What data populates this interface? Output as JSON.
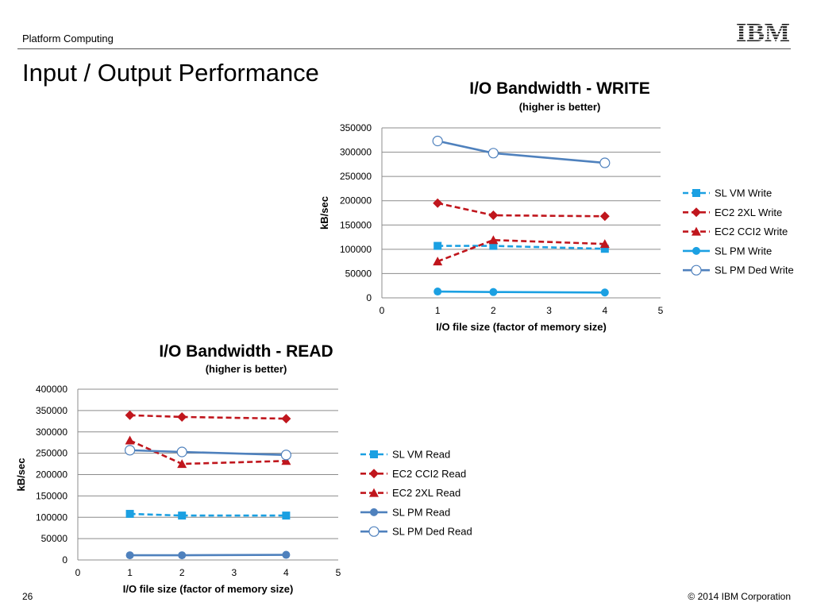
{
  "header": {
    "section": "Platform Computing",
    "logo_text": "IBM"
  },
  "page": {
    "title": "Input / Output Performance",
    "number": "26",
    "copyright": "© 2014 IBM Corporation"
  },
  "colors": {
    "sl_vm": "#1ba0e2",
    "ec2": "#c0161d",
    "sl_pm": "#1ba0e2",
    "sl_pm_ded": "#4f81bd"
  },
  "chart_data": [
    {
      "type": "line",
      "title": "I/O Bandwidth - WRITE",
      "subtitle": "(higher is better)",
      "xlabel": "I/O  file size (factor of memory size)",
      "ylabel": "kB/sec",
      "xlim": [
        0,
        5
      ],
      "ylim": [
        0,
        350000
      ],
      "xticks": [
        "0",
        "1",
        "2",
        "3",
        "4",
        "5"
      ],
      "yticks": [
        "0",
        "50000",
        "100000",
        "150000",
        "200000",
        "250000",
        "300000",
        "350000"
      ],
      "grid": true,
      "legend": "right",
      "x": [
        1,
        2,
        4
      ],
      "series": [
        {
          "name": "SL VM Write",
          "values": [
            107000,
            107000,
            101000
          ],
          "color": "#1ba0e2",
          "dash": true,
          "marker": "square"
        },
        {
          "name": "EC2 2XL Write",
          "values": [
            195000,
            170000,
            168000
          ],
          "color": "#c0161d",
          "dash": true,
          "marker": "diamond"
        },
        {
          "name": "EC2 CCI2 Write",
          "values": [
            75000,
            119000,
            111000
          ],
          "color": "#c0161d",
          "dash": true,
          "marker": "triangle"
        },
        {
          "name": "SL PM Write",
          "values": [
            13000,
            12000,
            11000
          ],
          "color": "#1ba0e2",
          "dash": false,
          "marker": "circle"
        },
        {
          "name": "SL PM Ded Write",
          "values": [
            323000,
            298000,
            278000
          ],
          "color": "#4f81bd",
          "dash": false,
          "marker": "open-circle"
        }
      ]
    },
    {
      "type": "line",
      "title": "I/O Bandwidth - READ",
      "subtitle": "(higher is better)",
      "xlabel": "I/O file size (factor of memory size)",
      "ylabel": "kB/sec",
      "xlim": [
        0,
        5
      ],
      "ylim": [
        0,
        400000
      ],
      "xticks": [
        "0",
        "1",
        "2",
        "3",
        "4",
        "5"
      ],
      "yticks": [
        "0",
        "50000",
        "100000",
        "150000",
        "200000",
        "250000",
        "300000",
        "350000",
        "400000"
      ],
      "grid": true,
      "legend": "right",
      "x": [
        1,
        2,
        4
      ],
      "series": [
        {
          "name": "SL VM Read",
          "values": [
            108000,
            104000,
            104000
          ],
          "color": "#1ba0e2",
          "dash": true,
          "marker": "square"
        },
        {
          "name": "EC2 CCI2 Read",
          "values": [
            339000,
            335000,
            331000
          ],
          "color": "#c0161d",
          "dash": true,
          "marker": "diamond"
        },
        {
          "name": "EC2 2XL Read",
          "values": [
            280000,
            225000,
            232000
          ],
          "color": "#c0161d",
          "dash": true,
          "marker": "triangle"
        },
        {
          "name": "SL PM Read",
          "values": [
            11000,
            11000,
            12000
          ],
          "color": "#4f81bd",
          "dash": false,
          "marker": "circle"
        },
        {
          "name": "SL PM Ded Read",
          "values": [
            257000,
            253000,
            246000
          ],
          "color": "#4f81bd",
          "dash": false,
          "marker": "open-circle"
        }
      ]
    }
  ]
}
